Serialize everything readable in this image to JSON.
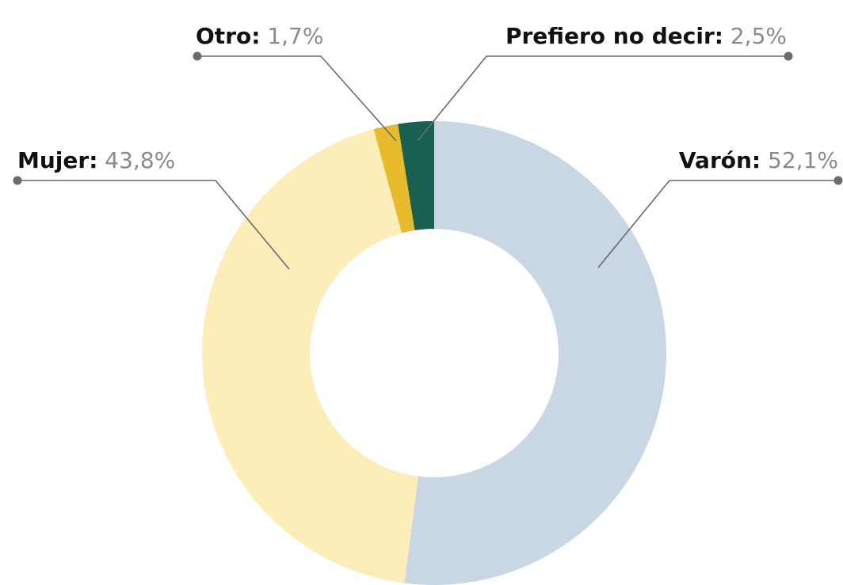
{
  "chart_data": {
    "type": "donut",
    "categories": [
      "Varón:",
      "Mujer:",
      "Otro:",
      "Prefiero no decir:"
    ],
    "values": [
      52.1,
      43.8,
      1.7,
      2.5
    ],
    "value_labels": [
      "52,1%",
      "43,8%",
      "1,7%",
      "2,5%"
    ],
    "colors": [
      "#c9d7e4",
      "#fdedb8",
      "#e8bb2c",
      "#1a6051"
    ]
  }
}
